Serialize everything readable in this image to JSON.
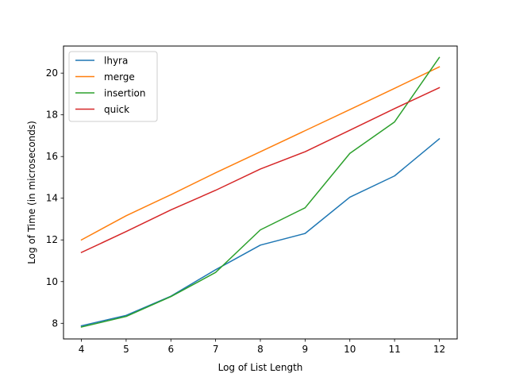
{
  "chart_data": {
    "type": "line",
    "xlabel": "Log of List Length",
    "ylabel": "Log of Time (in microseconds)",
    "x": [
      4,
      5,
      6,
      7,
      8,
      9,
      10,
      11,
      12
    ],
    "xlim": [
      3.6,
      12.4
    ],
    "ylim": [
      7.25,
      21.3
    ],
    "xticks": [
      4,
      5,
      6,
      7,
      8,
      9,
      10,
      11,
      12
    ],
    "yticks": [
      8,
      10,
      12,
      14,
      16,
      18,
      20
    ],
    "grid": false,
    "legend_position": "top-left",
    "series": [
      {
        "name": "lhyra",
        "color": "#1f77b4",
        "values": [
          7.88,
          8.38,
          9.3,
          10.57,
          11.75,
          12.31,
          14.05,
          15.07,
          16.85
        ]
      },
      {
        "name": "merge",
        "color": "#ff7f0e",
        "values": [
          12.0,
          13.16,
          14.17,
          15.22,
          16.23,
          17.24,
          18.25,
          19.27,
          20.3
        ]
      },
      {
        "name": "insertion",
        "color": "#2ca02c",
        "values": [
          7.82,
          8.33,
          9.28,
          10.44,
          12.48,
          13.54,
          16.15,
          17.66,
          20.75
        ]
      },
      {
        "name": "quick",
        "color": "#d62728",
        "values": [
          11.4,
          12.4,
          13.44,
          14.38,
          15.4,
          16.23,
          17.26,
          18.3,
          19.3
        ]
      }
    ]
  }
}
